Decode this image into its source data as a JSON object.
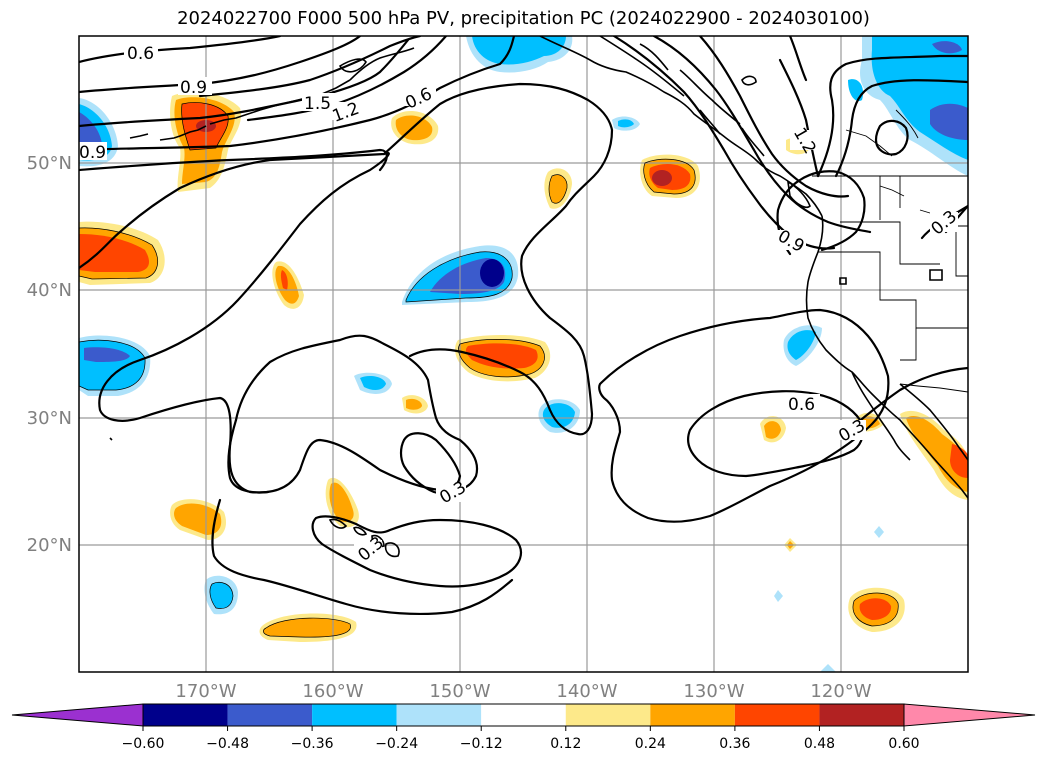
{
  "title": "2024022700 F000 500 hPa PV, precipitation PC (2024022900 - 2024030100)",
  "lat_labels": [
    "50°N",
    "40°N",
    "30°N",
    "20°N"
  ],
  "lon_labels": [
    "170°W",
    "160°W",
    "150°W",
    "140°W",
    "130°W",
    "120°W"
  ],
  "contour_labels": [
    "0.6",
    "0.9",
    "1.5",
    "1.2",
    "0.6",
    "0.9",
    "1.2",
    "0.9",
    "0.3",
    "0.6",
    "0.3",
    "0.3",
    "0.3"
  ],
  "colorbar": {
    "ticks": [
      "−0.60",
      "−0.48",
      "−0.36",
      "−0.24",
      "−0.12",
      "0.12",
      "0.24",
      "0.36",
      "0.48",
      "0.60"
    ],
    "colors": [
      "#9b30d0",
      "#00008b",
      "#3b5bcc",
      "#00bfff",
      "#aee2fa",
      "#ffffff",
      "#fde98a",
      "#ffa500",
      "#ff4500",
      "#b22222",
      "#ff88aa"
    ]
  },
  "chart_data": {
    "type": "heatmap",
    "title": "2024022700 F000 500 hPa PV, precipitation PC (2024022900 - 2024030100)",
    "xlabel": "",
    "ylabel": "",
    "xlim": [
      -180,
      -110
    ],
    "ylim": [
      10,
      60
    ],
    "x_ticks": [
      "170°W",
      "160°W",
      "150°W",
      "140°W",
      "130°W",
      "120°W"
    ],
    "y_ticks": [
      "50°N",
      "40°N",
      "30°N",
      "20°N"
    ],
    "grid": true,
    "colorbar_levels": [
      -0.6,
      -0.48,
      -0.36,
      -0.24,
      -0.12,
      0.12,
      0.24,
      0.36,
      0.48,
      0.6
    ],
    "pv_contour_levels": [
      0.3,
      0.6,
      0.9,
      1.2,
      1.5
    ],
    "precip_blobs": [
      {
        "lon": -170.0,
        "lat": 52.5,
        "value": 0.45
      },
      {
        "lon": -175.5,
        "lat": 43.0,
        "value": 0.4
      },
      {
        "lon": -164.0,
        "lat": 40.5,
        "value": 0.3
      },
      {
        "lon": -149.0,
        "lat": 41.5,
        "value": -0.5
      },
      {
        "lon": -146.5,
        "lat": 35.0,
        "value": 0.4
      },
      {
        "lon": -134.5,
        "lat": 49.0,
        "value": 0.45
      },
      {
        "lon": -142.5,
        "lat": 48.0,
        "value": 0.25
      },
      {
        "lon": -153.0,
        "lat": 53.0,
        "value": 0.25
      },
      {
        "lon": -177.0,
        "lat": 35.0,
        "value": -0.36
      },
      {
        "lon": -170.5,
        "lat": 22.5,
        "value": 0.25
      },
      {
        "lon": -168.5,
        "lat": 14.5,
        "value": -0.3
      },
      {
        "lon": -162.5,
        "lat": 13.5,
        "value": 0.25
      },
      {
        "lon": -159.5,
        "lat": 23.5,
        "value": 0.25
      },
      {
        "lon": -144.5,
        "lat": 30.0,
        "value": -0.24
      },
      {
        "lon": -154.0,
        "lat": 30.5,
        "value": 0.25
      },
      {
        "lon": -156.5,
        "lat": 33.0,
        "value": -0.24
      },
      {
        "lon": -116.5,
        "lat": 15.0,
        "value": 0.4
      },
      {
        "lon": -112.0,
        "lat": 27.0,
        "value": 0.35
      },
      {
        "lon": -125.5,
        "lat": 29.5,
        "value": 0.25
      },
      {
        "lon": -123.5,
        "lat": 36.0,
        "value": -0.36
      },
      {
        "lon": -113.5,
        "lat": 55.0,
        "value": -0.48
      },
      {
        "lon": -146.0,
        "lat": 58.5,
        "value": -0.36
      },
      {
        "lon": -178.5,
        "lat": 51.5,
        "value": -0.45
      }
    ]
  }
}
